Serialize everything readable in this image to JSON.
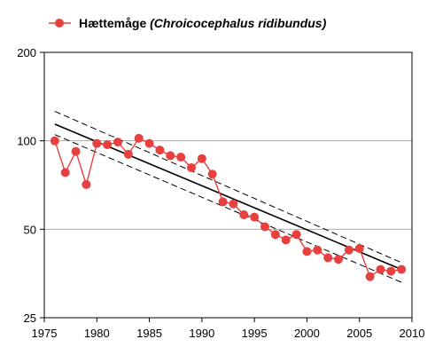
{
  "legend": {
    "common_name": "Hættemåge",
    "latin_name": "(Chroicocephalus ridibundus)"
  },
  "colors": {
    "series": "#e8403f",
    "trend": "#000000",
    "confidence": "#000000",
    "grid": "#aaaaaa",
    "frame": "#000000"
  },
  "chart_data": {
    "type": "line",
    "title": "",
    "xlabel": "",
    "ylabel": "",
    "y_scale": "log",
    "xlim": [
      1975,
      2010
    ],
    "ylim": [
      25,
      200
    ],
    "x_ticks": [
      1975,
      1980,
      1985,
      1990,
      1995,
      2000,
      2005,
      2010
    ],
    "y_ticks": [
      25,
      50,
      100,
      200
    ],
    "grid": "horizontal",
    "legend_position": "top-left",
    "series": [
      {
        "name": "Hættemåge (Chroicocephalus ridibundus)",
        "style": "line-with-markers",
        "x": [
          1976,
          1977,
          1978,
          1979,
          1980,
          1981,
          1982,
          1983,
          1984,
          1985,
          1986,
          1987,
          1988,
          1989,
          1990,
          1991,
          1992,
          1993,
          1994,
          1995,
          1996,
          1997,
          1998,
          1999,
          2000,
          2001,
          2002,
          2003,
          2004,
          2005,
          2006,
          2007,
          2008,
          2009
        ],
        "y": [
          100,
          78,
          92,
          71,
          98,
          97,
          99,
          90,
          102,
          98,
          93,
          89,
          88,
          81,
          87,
          77,
          62,
          61,
          56,
          55,
          51,
          48,
          46,
          48,
          42,
          42.5,
          40,
          39.5,
          42.5,
          43,
          34.5,
          36.5,
          36,
          36.5
        ]
      }
    ],
    "trend": {
      "x": [
        1976,
        2009
      ],
      "y": [
        114,
        36.5
      ],
      "upper": [
        126,
        38.5
      ],
      "lower": [
        105,
        33
      ]
    }
  }
}
